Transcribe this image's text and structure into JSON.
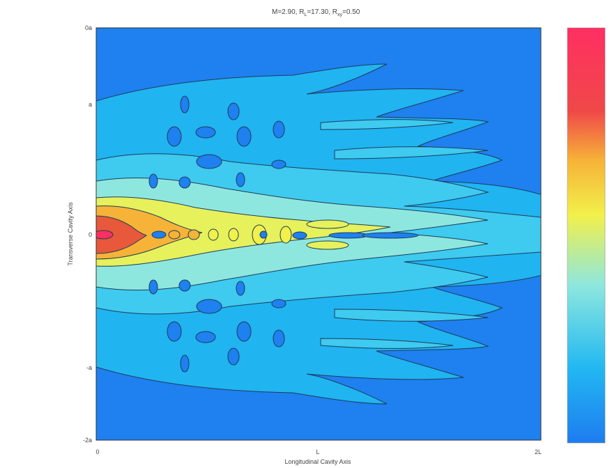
{
  "chart_data": {
    "type": "heatmap",
    "title_parts": {
      "m": "M=2.90,",
      "rl": "R",
      "rl_sub": "L",
      "rl_val": "=17.30,",
      "rb": "R",
      "rb_sub": "xy",
      "rb_val": "=0.50"
    },
    "xlabel": "Longitudinal Cavity Axis",
    "ylabel": "Transverse Cavity Axis",
    "x_ticks": [
      "0",
      "L",
      "2L"
    ],
    "y_ticks": [
      "0a",
      "a",
      "0",
      "-a",
      "-2a"
    ],
    "colormap": [
      "#1e7cf0",
      "#22b8f2",
      "#8ee7de",
      "#f2f04a",
      "#f6b338",
      "#f04848",
      "#ff2f62"
    ],
    "colorbar_range": [
      0,
      1
    ],
    "note": "Longitudinal/transverse intensity pattern; strongest at the left edge along the center line, fading to the right."
  }
}
